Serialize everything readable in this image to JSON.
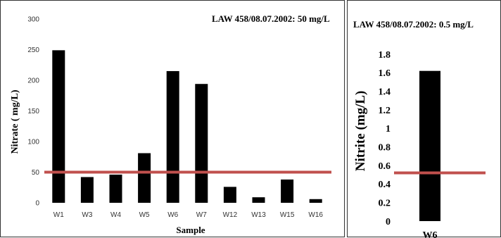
{
  "chart_data": [
    {
      "type": "bar",
      "annotation": "LAW 458/08.07.2002: 50 mg/L",
      "xlabel": "Sample",
      "ylabel": "Nitrate ( mg/L)",
      "ylim": [
        0,
        300
      ],
      "yticks": [
        0,
        50,
        100,
        150,
        200,
        250,
        300
      ],
      "categories": [
        "W1",
        "W3",
        "W4",
        "W5",
        "W6",
        "W7",
        "W12",
        "W13",
        "W15",
        "W16"
      ],
      "values": [
        249,
        42,
        46,
        81,
        215,
        194,
        26,
        9,
        38,
        6
      ],
      "limit": 50,
      "bar_color": "#000000",
      "limit_color": "#c0504d",
      "grid": false
    },
    {
      "type": "bar",
      "annotation": "LAW 458/08.07.2002: 0.5 mg/L",
      "xlabel": "",
      "ylabel": "Nitrite  (mg/L)",
      "ylim": [
        0,
        1.8
      ],
      "yticks": [
        "0",
        "0.2",
        "0.4",
        "0.6",
        "0.8",
        "1",
        "1.2",
        "1.4",
        "1.6",
        "1.8"
      ],
      "categories": [
        "W6"
      ],
      "values": [
        1.62
      ],
      "limit": 0.52,
      "bar_color": "#000000",
      "limit_color": "#c0504d",
      "grid": false
    }
  ]
}
